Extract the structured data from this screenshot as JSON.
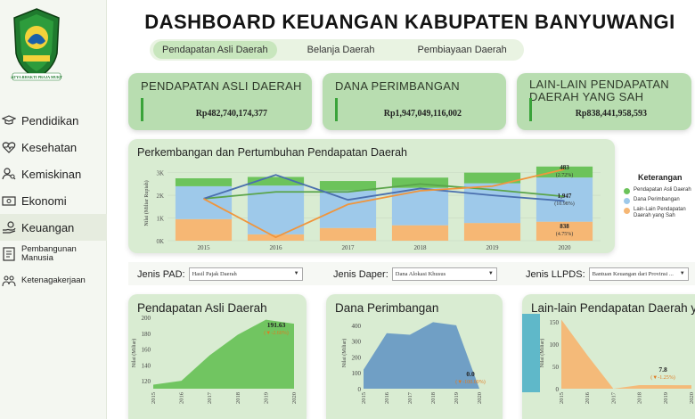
{
  "header": {
    "title": "DASHBOARD KEUANGAN KABUPATEN BANYUWANGI",
    "tabs": [
      {
        "label": "Pendapatan Asli Daerah",
        "active": true
      },
      {
        "label": "Belanja Daerah",
        "active": false
      },
      {
        "label": "Pembiayaan Daerah",
        "active": false
      }
    ]
  },
  "logo": {
    "motto": "SATYA BHAKTI PRAJA MUKTI"
  },
  "sidebar": {
    "items": [
      {
        "label": "Pendidikan",
        "icon": "graduation-cap-icon"
      },
      {
        "label": "Kesehatan",
        "icon": "heart-pulse-icon"
      },
      {
        "label": "Kemiskinan",
        "icon": "people-search-icon"
      },
      {
        "label": "Ekonomi",
        "icon": "money-icon"
      },
      {
        "label": "Keuangan",
        "icon": "coins-hand-icon",
        "active": true
      },
      {
        "label": "Pembangunan\nManusia",
        "icon": "document-list-icon"
      },
      {
        "label": "Ketenagakerjaan",
        "icon": "workers-icon"
      }
    ]
  },
  "kpis": [
    {
      "title": "PENDAPATAN ASLI DAERAH",
      "value": "Rp482,740,174,377"
    },
    {
      "title": "DANA PERIMBANGAN",
      "value": "Rp1,947,049,116,002"
    },
    {
      "title": "LAIN-LAIN PENDAPATAN DAERAH YANG SAH",
      "value": "Rp838,441,958,593"
    }
  ],
  "main_chart": {
    "title": "Perkembangan dan Pertumbuhan Pendapatan Daerah",
    "ylabel": "Nilai (Miliar Rupiah)",
    "annotations": [
      {
        "value": "483",
        "growth": "(2.72%)"
      },
      {
        "value": "1,947",
        "growth": "(10.98%)"
      },
      {
        "value": "838",
        "growth": "(4.75%)"
      }
    ]
  },
  "legend": {
    "title": "Keterangan",
    "items": [
      {
        "label": "Pendapatan Asli Daerah",
        "color": "#6cc35b"
      },
      {
        "label": "Dana Perimbangan",
        "color": "#9ec9ea"
      },
      {
        "label": "Lain-Lain Pendapatan Daerah yang Sah",
        "color": "#f6b774"
      }
    ]
  },
  "filters": [
    {
      "label": "Jenis PAD:",
      "value": "Hasil Pajak Daerah"
    },
    {
      "label": "Jenis Daper:",
      "value": "Dana Alokasi Khusus"
    },
    {
      "label": "Jenis LLPDS:",
      "value": "Bantuan Keuangan dari Provinsi ..."
    }
  ],
  "cards": [
    {
      "title": "Pendapatan Asli Daerah",
      "ylabel": "Nilai (Miliar)",
      "last_value": "191.63",
      "last_growth": "(▼-2.60%)"
    },
    {
      "title": "Dana Perimbangan",
      "ylabel": "Nilai (Miliar)",
      "last_value": "0.0",
      "last_growth": "(▼-100.00%)"
    },
    {
      "title": "Lain-lain Pendapatan Daerah yang sah",
      "ylabel": "Nilai (Miliar)",
      "last_value": "7.8",
      "last_growth": "(▼-1.25%)"
    }
  ],
  "chart_data": [
    {
      "type": "bar",
      "title": "Perkembangan dan Pertumbuhan Pendapatan Daerah",
      "ylabel": "Nilai (Miliar Rupiah)",
      "categories": [
        "2015",
        "2016",
        "2017",
        "2018",
        "2019",
        "2020"
      ],
      "yticks": [
        "0K",
        "1K",
        "2K",
        "3K"
      ],
      "ylim": [
        0,
        3300
      ],
      "stacked_series": [
        {
          "name": "Lain-Lain Pendapatan Daerah yang Sah",
          "color": "#f6b774",
          "values": [
            950,
            280,
            560,
            680,
            780,
            838
          ]
        },
        {
          "name": "Dana Perimbangan",
          "color": "#9ec9ea",
          "values": [
            1450,
            2150,
            1650,
            1650,
            1750,
            1947
          ]
        },
        {
          "name": "Pendapatan Asli Daerah",
          "color": "#6cc35b",
          "values": [
            350,
            380,
            420,
            450,
            470,
            483
          ]
        }
      ],
      "growth_lines": [
        {
          "name": "Pendapatan Asli Daerah",
          "color": "#5aa44a",
          "values": [
            1850,
            2150,
            2150,
            2500,
            2250,
            1950
          ]
        },
        {
          "name": "Dana Perimbangan",
          "color": "#4a6fae",
          "values": [
            1850,
            2900,
            1800,
            2300,
            2000,
            1750
          ]
        },
        {
          "name": "Lain-Lain Pendapatan Daerah yang Sah",
          "color": "#f0953c",
          "values": [
            1850,
            150,
            1600,
            2200,
            2400,
            3150
          ]
        }
      ]
    },
    {
      "type": "area",
      "title": "Pendapatan Asli Daerah",
      "ylabel": "Nilai (Miliar)",
      "x": [
        "2015",
        "2016",
        "2017",
        "2018",
        "2019",
        "2020"
      ],
      "values": [
        115,
        120,
        152,
        178,
        197,
        192
      ],
      "ylim": [
        110,
        200
      ],
      "yticks": [
        "120",
        "140",
        "160",
        "180",
        "200"
      ],
      "color": "#6cc35b"
    },
    {
      "type": "area",
      "title": "Dana Perimbangan",
      "ylabel": "Nilai (Miliar)",
      "x": [
        "2015",
        "2016",
        "2017",
        "2018",
        "2019",
        "2020"
      ],
      "values": [
        120,
        350,
        340,
        420,
        400,
        0
      ],
      "ylim": [
        0,
        450
      ],
      "yticks": [
        "0",
        "100",
        "200",
        "300",
        "400"
      ],
      "color": "#6a9bc4"
    },
    {
      "type": "area",
      "title": "Lain-lain Pendapatan Daerah yang sah",
      "ylabel": "Nilai (Miliar)",
      "x": [
        "2015",
        "2016",
        "2017",
        "2018",
        "2019",
        "2020"
      ],
      "values": [
        155,
        75,
        0,
        8,
        7.9,
        7.8
      ],
      "ylim": [
        0,
        160
      ],
      "yticks": [
        "0",
        "50",
        "100",
        "150"
      ],
      "color": "#f6b774"
    }
  ]
}
